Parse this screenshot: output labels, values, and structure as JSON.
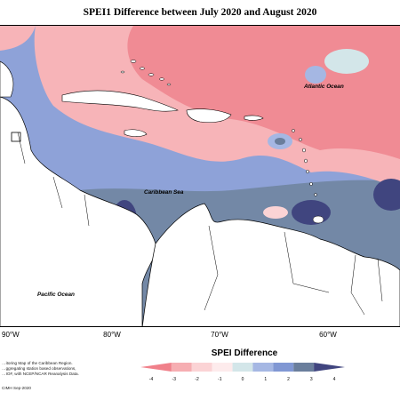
{
  "title": "SPEI1 Difference between July 2020 and August 2020",
  "map_labels": {
    "atlantic": "Atlantic Ocean",
    "caribbean": "Caribbean Sea",
    "pacific": "Pacific Ocean"
  },
  "longitude_labels": [
    "90°W",
    "80°W",
    "70°W",
    "60°W"
  ],
  "legend": {
    "title": "SPEI Difference",
    "ticks": [
      "-4",
      "-3",
      "-2",
      "-1",
      "0",
      "1",
      "2",
      "3",
      "4"
    ],
    "colors": [
      "#f0808a",
      "#f6aeb2",
      "#fbd3d5",
      "#fdebec",
      "#d3e6e9",
      "#a5b7e3",
      "#8097d3",
      "#6a7e9c",
      "#40457f"
    ]
  },
  "credits": {
    "line1": "…itoring Map of the Caribbean Region.",
    "line2": "…ggregating station based observations,",
    "line3": "…IOF, with NCEP/NCAR Reanalysis Data.",
    "line4": "CIMH Sep-2020"
  }
}
